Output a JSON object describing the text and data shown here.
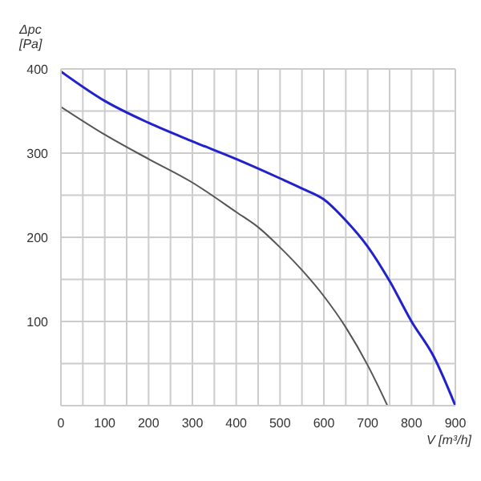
{
  "chart_data": {
    "type": "line",
    "xlabel": "V [m³/h]",
    "ylabel": "Δpc [Pa]",
    "xlim": [
      0,
      900
    ],
    "ylim": [
      0,
      400
    ],
    "xticks": [
      0,
      {
        "value": 50,
        "label": null
      },
      100,
      {
        "value": 150,
        "label": null
      },
      200,
      {
        "value": 250,
        "label": null
      },
      300,
      {
        "value": 350,
        "label": null
      },
      400,
      {
        "value": 450,
        "label": null
      },
      500,
      {
        "value": 550,
        "label": null
      },
      600,
      {
        "value": 650,
        "label": null
      },
      700,
      {
        "value": 750,
        "label": null
      },
      800,
      {
        "value": 850,
        "label": null
      },
      900
    ],
    "yticks": [
      {
        "value": 0,
        "label": null
      },
      {
        "value": 50,
        "label": null
      },
      100,
      {
        "value": 150,
        "label": null
      },
      200,
      {
        "value": 250,
        "label": null
      },
      300,
      {
        "value": 350,
        "label": null
      },
      400
    ],
    "grid": true,
    "marker": "none",
    "line_style": "solid",
    "series": [
      {
        "color": "#2222cc",
        "x": [
          0,
          100,
          200,
          300,
          400,
          500,
          550,
          600,
          650,
          700,
          750,
          800,
          850,
          900
        ],
        "values": [
          397,
          362,
          336,
          314,
          293,
          270,
          258,
          245,
          220,
          189,
          148,
          100,
          59,
          0
        ]
      },
      {
        "color": "#555555",
        "x": [
          0,
          100,
          200,
          300,
          400,
          450,
          500,
          550,
          600,
          650,
          700,
          725,
          745
        ],
        "values": [
          355,
          322,
          293,
          265,
          230,
          212,
          188,
          161,
          130,
          93,
          48,
          22,
          0
        ]
      }
    ]
  }
}
